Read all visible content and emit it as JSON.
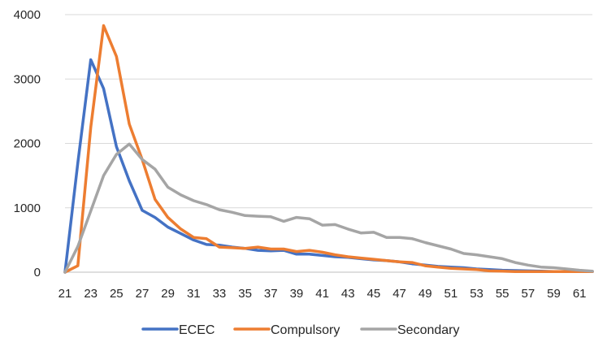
{
  "chart_data": {
    "type": "line",
    "title": "",
    "xlabel": "",
    "ylabel": "",
    "ylim": [
      0,
      4000
    ],
    "yticks": [
      "0",
      "1000",
      "2000",
      "3000",
      "4000"
    ],
    "xtick_labels": [
      "21",
      "23",
      "25",
      "27",
      "29",
      "31",
      "33",
      "35",
      "37",
      "39",
      "41",
      "43",
      "45",
      "47",
      "49",
      "51",
      "53",
      "55",
      "57",
      "59",
      "61"
    ],
    "x": [
      21,
      22,
      23,
      24,
      25,
      26,
      27,
      28,
      29,
      30,
      31,
      32,
      33,
      34,
      35,
      36,
      37,
      38,
      39,
      40,
      41,
      42,
      43,
      44,
      45,
      46,
      47,
      48,
      49,
      50,
      51,
      52,
      53,
      54,
      55,
      56,
      57,
      58,
      59,
      60,
      61,
      62
    ],
    "grid": true,
    "legend_position": "bottom",
    "series": [
      {
        "name": "ECEC",
        "color": "#4472C4",
        "values": [
          0,
          1700,
          3300,
          2850,
          1950,
          1420,
          960,
          850,
          700,
          600,
          500,
          430,
          420,
          390,
          370,
          340,
          330,
          340,
          280,
          280,
          260,
          240,
          230,
          210,
          190,
          180,
          160,
          130,
          110,
          90,
          80,
          70,
          50,
          40,
          30,
          25,
          20,
          15,
          10,
          10,
          10,
          10
        ]
      },
      {
        "name": "Compulsory",
        "color": "#ED7D31",
        "values": [
          0,
          100,
          2250,
          3830,
          3350,
          2300,
          1750,
          1130,
          850,
          670,
          540,
          520,
          390,
          380,
          370,
          390,
          360,
          360,
          320,
          340,
          310,
          270,
          240,
          220,
          200,
          180,
          160,
          150,
          100,
          80,
          60,
          50,
          40,
          20,
          15,
          10,
          10,
          10,
          10,
          10,
          10,
          10
        ]
      },
      {
        "name": "Secondary",
        "color": "#A5A5A5",
        "values": [
          0,
          400,
          950,
          1500,
          1830,
          1990,
          1750,
          1600,
          1320,
          1200,
          1110,
          1050,
          970,
          930,
          880,
          870,
          860,
          790,
          850,
          830,
          730,
          740,
          670,
          610,
          620,
          540,
          540,
          520,
          460,
          410,
          360,
          290,
          270,
          240,
          210,
          150,
          110,
          80,
          70,
          50,
          30,
          15
        ]
      }
    ]
  }
}
